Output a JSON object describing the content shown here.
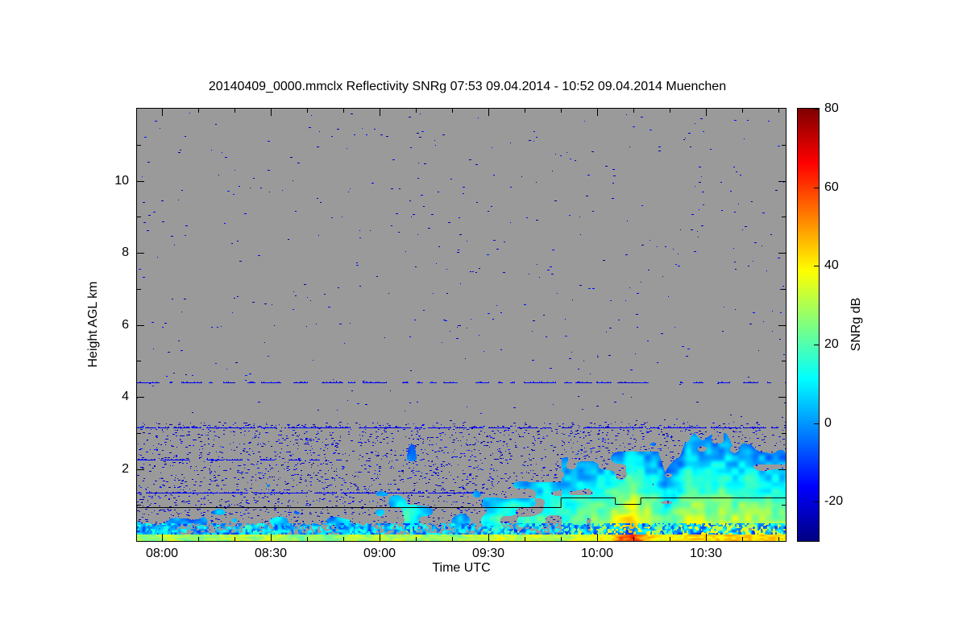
{
  "chart_data": {
    "type": "heatmap",
    "title": "20140409_0000.mmclx Reflectivity SNRg   07:53 09.04.2014 - 10:52 09.04.2014 Muenchen",
    "file_label": "20140409_0000.mmclx",
    "quantity_label": "Reflectivity SNRg",
    "time_range_label": "07:53 09.04.2014 - 10:52 09.04.2014",
    "station_label": "Muenchen",
    "xlabel": "Time UTC",
    "ylabel": "Height AGL km",
    "colorbar_label": "SNRg dB",
    "time_start": "07:53",
    "time_end": "10:52",
    "duration_min": 179,
    "x_major_ticks": [
      {
        "label": "08:00",
        "min": 7
      },
      {
        "label": "08:30",
        "min": 37
      },
      {
        "label": "09:00",
        "min": 67
      },
      {
        "label": "09:30",
        "min": 97
      },
      {
        "label": "10:00",
        "min": 127
      },
      {
        "label": "10:30",
        "min": 157
      }
    ],
    "x_minor_step_min": 10,
    "ylim_km": [
      0,
      12
    ],
    "y_major_ticks": [
      2,
      4,
      6,
      8,
      10
    ],
    "y_minor_step_km": 1,
    "colorbar": {
      "range_db": [
        -30,
        80
      ],
      "ticks_db": [
        80,
        60,
        40,
        20,
        0,
        -20
      ]
    },
    "colormap_jet_stops": [
      [
        0.0,
        "#000083"
      ],
      [
        0.125,
        "#0000ff"
      ],
      [
        0.375,
        "#00ffff"
      ],
      [
        0.625,
        "#ffff00"
      ],
      [
        0.875,
        "#ff0000"
      ],
      [
        1.0,
        "#800000"
      ]
    ],
    "no_signal_color": "#9a9a9a",
    "seed": 20140409,
    "sample_step_min": 3,
    "echo_top_km": [
      0.8,
      0.6,
      0.9,
      1.1,
      0.7,
      0.6,
      0.8,
      1.0,
      1.3,
      1.5,
      1.6,
      1.4,
      1.7,
      1.3,
      0.9,
      0.7,
      0.8,
      0.6,
      0.9,
      1.2,
      1.4,
      1.1,
      1.5,
      1.8,
      2.4,
      2.6,
      1.6,
      1.0,
      1.2,
      0.9,
      1.3,
      1.6,
      1.9,
      2.1,
      2.3,
      2.0,
      2.2,
      2.4,
      2.2,
      2.3,
      2.5,
      2.6,
      2.7,
      2.7,
      2.8,
      2.8,
      2.7,
      2.5,
      2.0,
      2.6,
      2.8,
      2.9,
      2.8,
      2.7,
      2.8,
      2.9,
      2.8,
      2.7,
      2.6,
      2.5
    ],
    "max_snr_db": [
      10,
      8,
      12,
      14,
      9,
      8,
      10,
      12,
      16,
      18,
      20,
      16,
      22,
      15,
      10,
      8,
      10,
      8,
      12,
      15,
      18,
      14,
      18,
      20,
      22,
      20,
      16,
      12,
      14,
      10,
      15,
      18,
      20,
      24,
      26,
      22,
      25,
      28,
      24,
      26,
      30,
      32,
      35,
      38,
      48,
      55,
      45,
      35,
      25,
      35,
      40,
      42,
      38,
      36,
      40,
      42,
      40,
      38,
      36,
      34
    ],
    "surface_snr_db": [
      30,
      25,
      28,
      35,
      26,
      24,
      27,
      30,
      28,
      34,
      30,
      28,
      36,
      30,
      26,
      24,
      28,
      24,
      26,
      30,
      32,
      28,
      35,
      30,
      32,
      30,
      28,
      26,
      30,
      26,
      30,
      32,
      34,
      36,
      32,
      30,
      34,
      32,
      30,
      32,
      34,
      36,
      38,
      40,
      55,
      60,
      50,
      40,
      35,
      38,
      42,
      44,
      40,
      42,
      45,
      44,
      42,
      45,
      42,
      40
    ],
    "coverage_break_min": 117,
    "artifact_lines": [
      {
        "km": 4.4,
        "t0": 0,
        "t1": 179,
        "density": 0.5
      },
      {
        "km": 3.15,
        "t0": 0,
        "t1": 179,
        "density": 0.7
      },
      {
        "km": 2.25,
        "t0": 0,
        "t1": 58,
        "density": 0.55
      },
      {
        "km": 1.35,
        "t0": 0,
        "t1": 96,
        "density": 0.85
      }
    ],
    "noise_speckle": {
      "upper_count": 420,
      "upper_region_km": [
        3.3,
        11.9
      ],
      "mid_count": 3200,
      "mid_region_km": [
        0.35,
        3.3
      ],
      "snr_range_db": [
        -28,
        -12
      ]
    },
    "melting_line_km": [
      [
        0,
        0.93
      ],
      [
        117,
        0.93
      ],
      [
        117,
        1.2
      ],
      [
        132,
        1.2
      ],
      [
        132,
        1.02
      ],
      [
        139,
        1.02
      ],
      [
        139,
        1.2
      ],
      [
        179,
        1.2
      ]
    ]
  }
}
